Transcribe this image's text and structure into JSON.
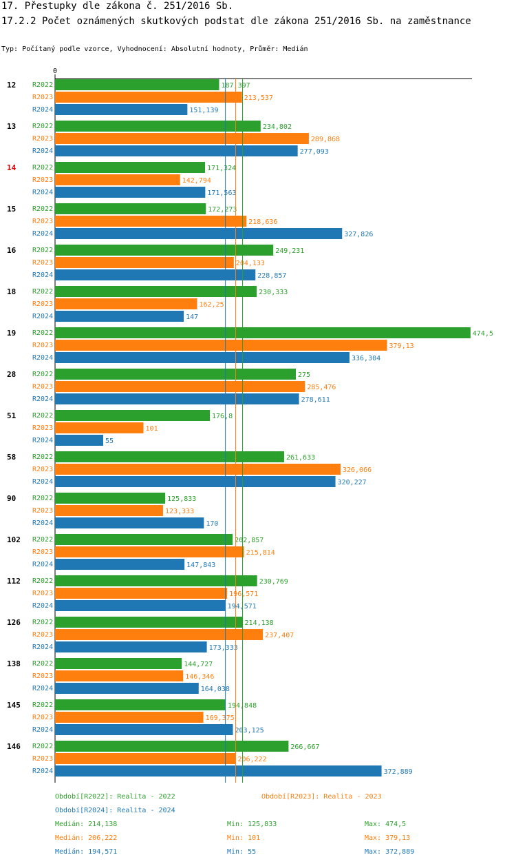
{
  "page": {
    "title": "17. Přestupky dle zákona č. 251/2016 Sb.",
    "subtitle": "17.2.2 Počet oznámených skutkových podstat dle zákona 251/2016 Sb. na zaměstnance",
    "type_line": "Typ: Počítaný podle vzorce, Vyhodnocení: Absolutní hodnoty, Průměr: Medián"
  },
  "colors": {
    "R2022": "#2ca02c",
    "R2023": "#ff7f0e",
    "R2024": "#1f77b4",
    "highlight": "#dd0000"
  },
  "chart_data": {
    "type": "bar",
    "orientation": "horizontal",
    "axis_zero_label": "0",
    "xlim": [
      0,
      474.5
    ],
    "series_names": [
      "R2022",
      "R2023",
      "R2024"
    ],
    "groups": [
      {
        "label": "12",
        "highlight": false,
        "values": [
          187.397,
          213.537,
          151.139
        ],
        "labels": [
          "187,397",
          "213,537",
          "151,139"
        ]
      },
      {
        "label": "13",
        "highlight": false,
        "values": [
          234.802,
          289.868,
          277.093
        ],
        "labels": [
          "234,802",
          "289,868",
          "277,093"
        ]
      },
      {
        "label": "14",
        "highlight": true,
        "values": [
          171.324,
          142.794,
          171.563
        ],
        "labels": [
          "171,324",
          "142,794",
          "171,563"
        ]
      },
      {
        "label": "15",
        "highlight": false,
        "values": [
          172.273,
          218.636,
          327.826
        ],
        "labels": [
          "172,273",
          "218,636",
          "327,826"
        ]
      },
      {
        "label": "16",
        "highlight": false,
        "values": [
          249.231,
          204.133,
          228.857
        ],
        "labels": [
          "249,231",
          "204,133",
          "228,857"
        ]
      },
      {
        "label": "18",
        "highlight": false,
        "values": [
          230.333,
          162.25,
          147
        ],
        "labels": [
          "230,333",
          "162,25",
          "147"
        ]
      },
      {
        "label": "19",
        "highlight": false,
        "values": [
          474.5,
          379.13,
          336.304
        ],
        "labels": [
          "474,5",
          "379,13",
          "336,304"
        ]
      },
      {
        "label": "28",
        "highlight": false,
        "values": [
          275,
          285.476,
          278.611
        ],
        "labels": [
          "275",
          "285,476",
          "278,611"
        ]
      },
      {
        "label": "51",
        "highlight": false,
        "values": [
          176.8,
          101,
          55
        ],
        "labels": [
          "176,8",
          "101",
          "55"
        ]
      },
      {
        "label": "58",
        "highlight": false,
        "values": [
          261.633,
          326.066,
          320.227
        ],
        "labels": [
          "261,633",
          "326,066",
          "320,227"
        ]
      },
      {
        "label": "90",
        "highlight": false,
        "values": [
          125.833,
          123.333,
          170
        ],
        "labels": [
          "125,833",
          "123,333",
          "170"
        ]
      },
      {
        "label": "102",
        "highlight": false,
        "values": [
          202.857,
          215.814,
          147.843
        ],
        "labels": [
          "202,857",
          "215,814",
          "147,843"
        ]
      },
      {
        "label": "112",
        "highlight": false,
        "values": [
          230.769,
          196.571,
          194.571
        ],
        "labels": [
          "230,769",
          "196,571",
          "194,571"
        ]
      },
      {
        "label": "126",
        "highlight": false,
        "values": [
          214.138,
          237.407,
          173.333
        ],
        "labels": [
          "214,138",
          "237,407",
          "173,333"
        ]
      },
      {
        "label": "138",
        "highlight": false,
        "values": [
          144.727,
          146.346,
          164.038
        ],
        "labels": [
          "144,727",
          "146,346",
          "164,038"
        ]
      },
      {
        "label": "145",
        "highlight": false,
        "values": [
          194.848,
          169.375,
          203.125
        ],
        "labels": [
          "194,848",
          "169,375",
          "203,125"
        ]
      },
      {
        "label": "146",
        "highlight": false,
        "values": [
          266.667,
          206.222,
          372.889
        ],
        "labels": [
          "266,667",
          "206,222",
          "372,889"
        ]
      }
    ],
    "medians": {
      "R2022": 214.138,
      "R2023": 206.222,
      "R2024": 194.571
    }
  },
  "legend": {
    "period_r2022": "Období[R2022]: Realita - 2022",
    "period_r2023": "Období[R2023]: Realita - 2023",
    "period_r2024": "Období[R2024]: Realita - 2024",
    "stats": [
      {
        "median": "Medián: 214,138",
        "min": "Min: 125,833",
        "max": "Max: 474,5"
      },
      {
        "median": "Medián: 206,222",
        "min": "Min: 101",
        "max": "Max: 379,13"
      },
      {
        "median": "Medián: 194,571",
        "min": "Min: 55",
        "max": "Max: 372,889"
      }
    ]
  }
}
